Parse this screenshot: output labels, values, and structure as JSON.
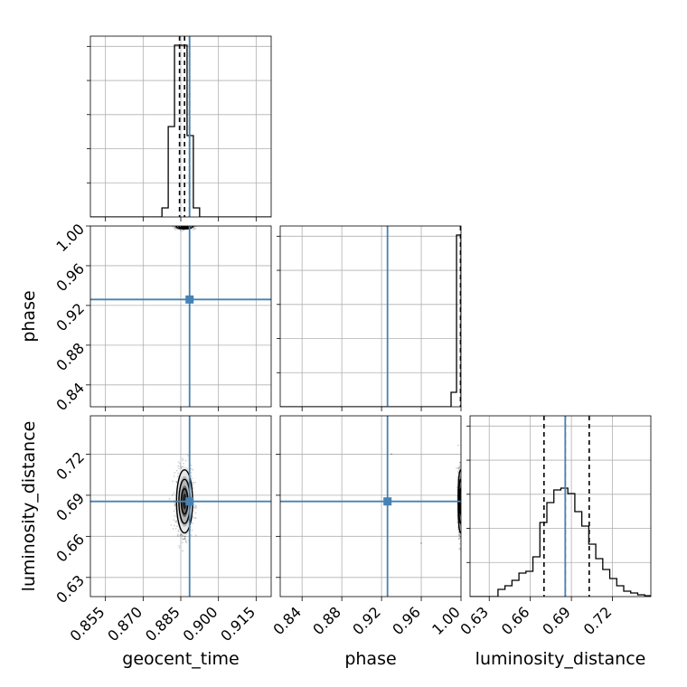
{
  "chart_data": {
    "type": "corner",
    "parameters": [
      "geocent_time",
      "phase",
      "luminosity_distance"
    ],
    "axis_labels": {
      "x": [
        "geocent_time",
        "phase",
        "luminosity_distance"
      ],
      "y": [
        "phase",
        "luminosity_distance"
      ]
    },
    "ranges": {
      "geocent_time": [
        0.849,
        0.921
      ],
      "phase": [
        0.818,
        1.0
      ],
      "luminosity_distance": [
        0.616,
        0.748
      ]
    },
    "ticks": {
      "geocent_time": [
        "0.855",
        "0.870",
        "0.885",
        "0.900",
        "0.915"
      ],
      "phase": [
        "0.84",
        "0.88",
        "0.92",
        "0.96",
        "1.00"
      ],
      "luminosity_distance": [
        "0.63",
        "0.66",
        "0.69",
        "0.72"
      ]
    },
    "truths": {
      "geocent_time": 0.8885,
      "phase": 0.926,
      "luminosity_distance": 0.6855
    },
    "quantiles": {
      "geocent_time": [
        0.8845,
        0.8865,
        0.8885
      ],
      "phase": [
        0.9995,
        1.0,
        1.0
      ],
      "luminosity_distance": [
        0.67,
        0.6855,
        0.703
      ]
    },
    "histograms": {
      "geocent_time": {
        "edges": [
          0.8775,
          0.88,
          0.8825,
          0.885,
          0.8875,
          0.89,
          0.8925,
          0.895
        ],
        "counts": [
          0.05,
          0.5,
          0.95,
          0.95,
          0.45,
          0.05,
          0.0
        ]
      },
      "phase": {
        "edges": [
          0.99,
          0.9955,
          1.0
        ],
        "counts": [
          0.08,
          0.95
        ]
      },
      "luminosity_distance": {
        "edges": [
          0.616,
          0.6262,
          0.6364,
          0.6466,
          0.6568,
          0.667,
          0.6772,
          0.6874,
          0.6976,
          0.7078,
          0.718,
          0.7282,
          0.7384
        ],
        "counts": [
          0.01,
          0.03,
          0.07,
          0.12,
          0.18,
          0.38,
          0.58,
          0.59,
          0.4,
          0.22,
          0.06,
          0.02
        ],
        "extra_bins": {
          "edges": [
            0.6364,
            0.6415,
            0.6466,
            0.6517,
            0.6568,
            0.6619,
            0.667,
            0.6721,
            0.6772,
            0.6823,
            0.6874,
            0.6925,
            0.6976,
            0.7027,
            0.7078,
            0.7129,
            0.718,
            0.7231,
            0.7282,
            0.7333,
            0.7384,
            0.7435,
            0.748
          ],
          "counts": [
            0.04,
            0.06,
            0.09,
            0.13,
            0.14,
            0.22,
            0.41,
            0.52,
            0.59,
            0.6,
            0.57,
            0.47,
            0.39,
            0.29,
            0.21,
            0.15,
            0.1,
            0.06,
            0.03,
            0.02,
            0.01,
            0.005
          ]
        }
      }
    },
    "grid": true,
    "colors": {
      "truth": "#4682b4",
      "hist": "#000000",
      "grid": "#b0b0b0",
      "density": "#000000"
    }
  }
}
